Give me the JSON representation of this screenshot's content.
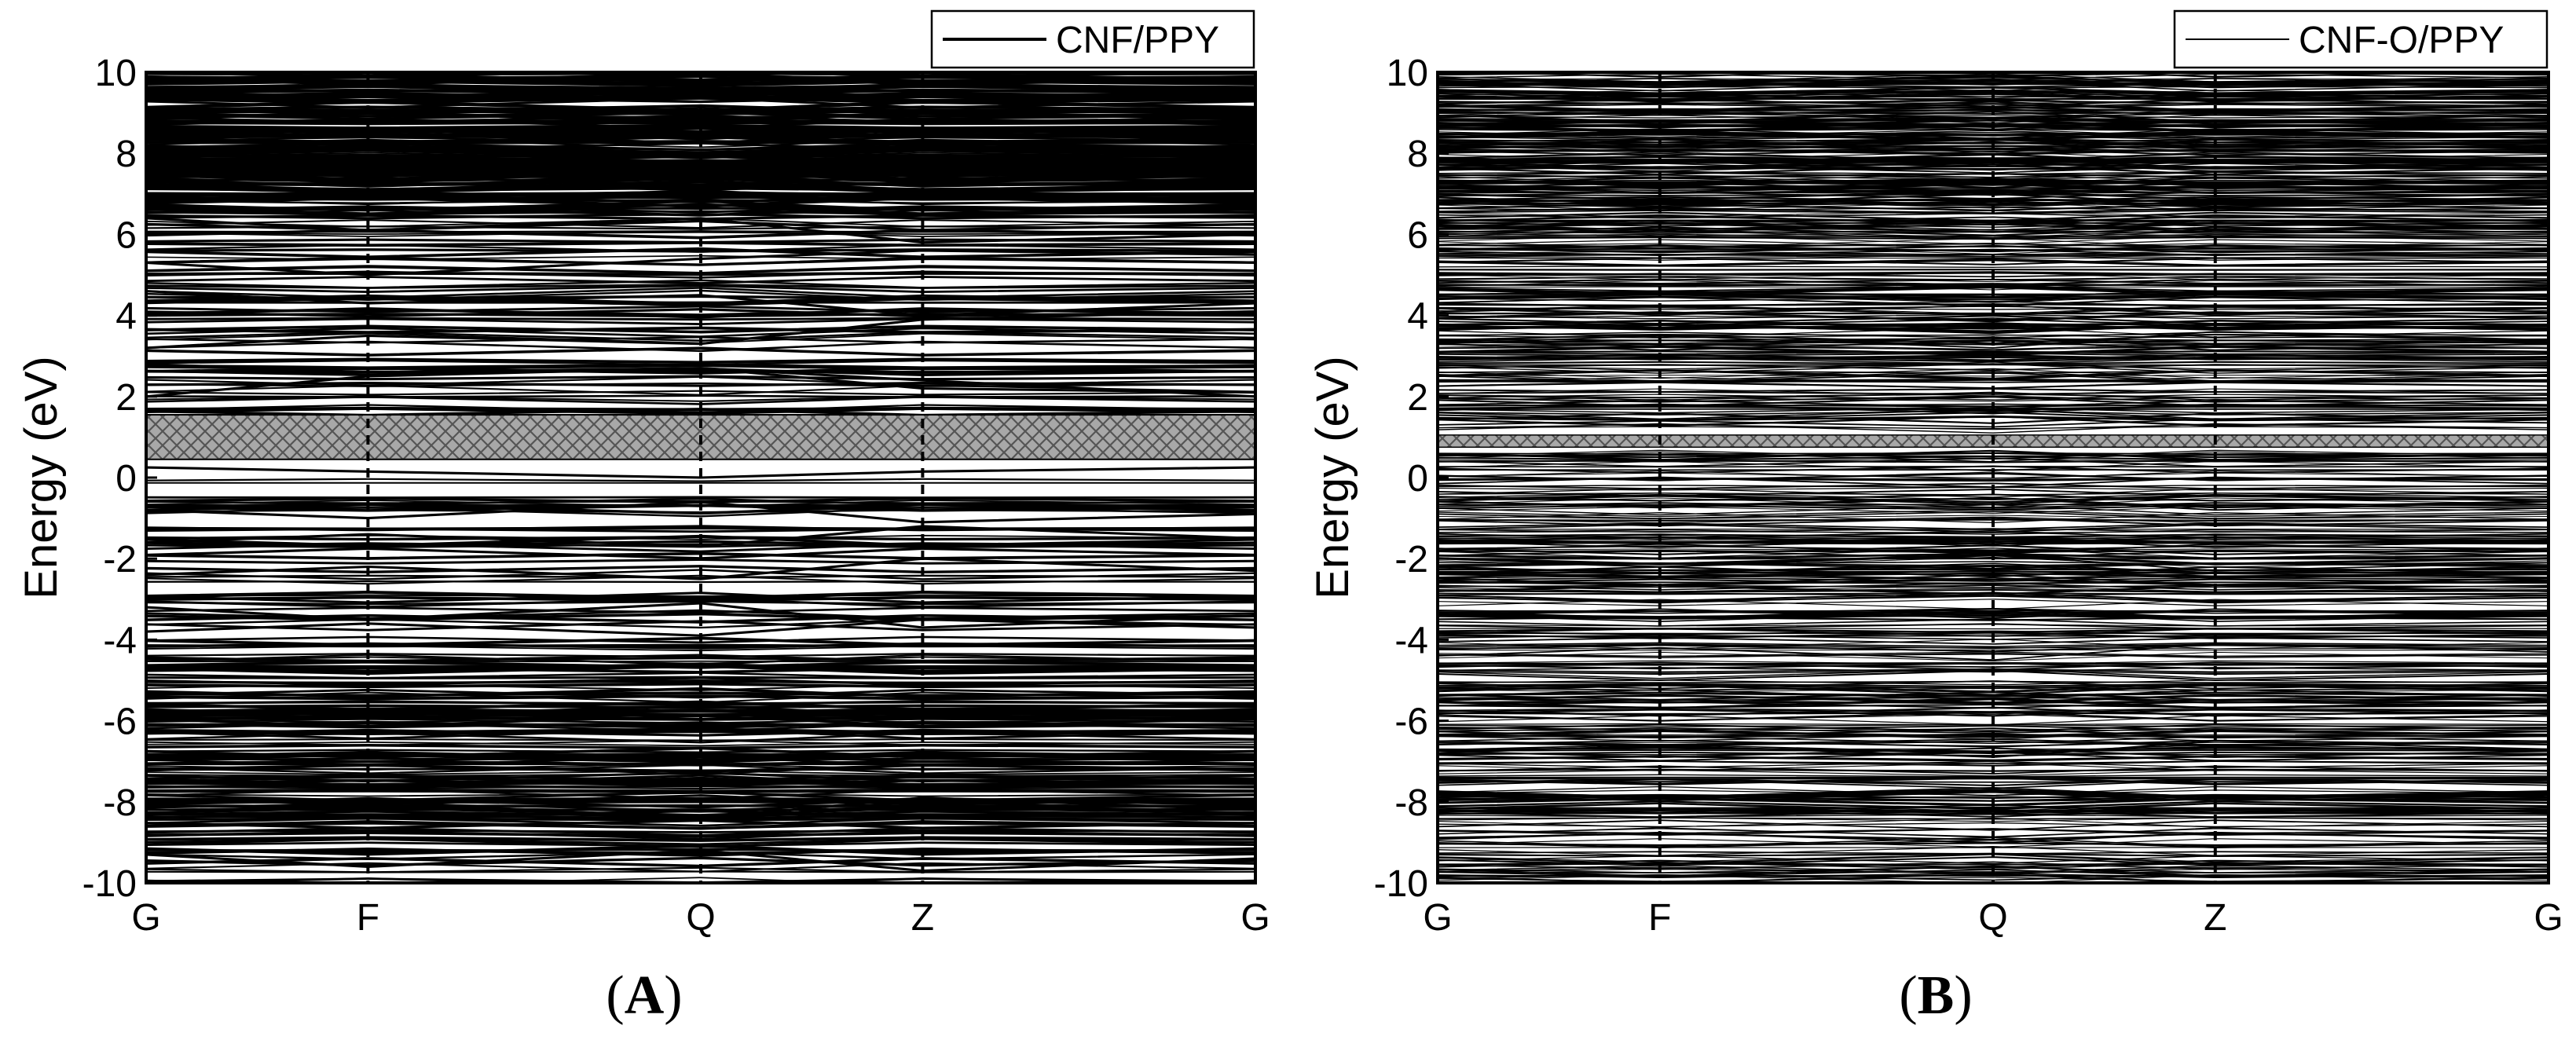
{
  "colors": {
    "band_line": "#000000",
    "gap_fill": "#9a9a9a",
    "frame": "#000000",
    "background": "#ffffff"
  },
  "chart_data": [
    {
      "type": "line",
      "panel_label": "A",
      "ylabel": "Energy (eV)",
      "xlabel": "",
      "ylim": [
        -10,
        10
      ],
      "yticks": [
        -10,
        -8,
        -6,
        -4,
        -2,
        0,
        2,
        4,
        6,
        8,
        10
      ],
      "xticks": [
        "G",
        "F",
        "Q",
        "Z",
        "G"
      ],
      "xtick_positions": [
        0,
        0.2,
        0.5,
        0.7,
        1.0
      ],
      "high_symmetry_dividers": [
        "F",
        "Q",
        "Z"
      ],
      "legend": {
        "entry": "CNF/PPY",
        "placement": "top-right"
      },
      "band_gap_region": {
        "from_eV": 0.45,
        "to_eV": 1.55,
        "style": "cross-hatched"
      },
      "series": [
        {
          "values": [
            0.25,
            0.15,
            0.0,
            0.15,
            0.25
          ]
        },
        {
          "values": [
            2.0,
            2.5,
            2.7,
            2.4,
            2.0
          ]
        },
        {
          "values": [
            2.8,
            2.6,
            2.7,
            2.2,
            2.1
          ]
        },
        {
          "values": [
            3.2,
            3.5,
            3.3,
            3.9,
            4.1
          ]
        },
        {
          "values": [
            4.6,
            4.3,
            4.5,
            4.0,
            4.3
          ]
        },
        {
          "values": [
            5.3,
            5.0,
            5.4,
            5.6,
            5.5
          ]
        },
        {
          "values": [
            6.4,
            6.1,
            6.4,
            5.8,
            6.0
          ]
        },
        {
          "values": [
            -0.8,
            -1.0,
            -0.6,
            -1.1,
            -0.9
          ]
        },
        {
          "values": [
            -1.6,
            -1.4,
            -1.7,
            -1.2,
            -1.5
          ]
        },
        {
          "values": [
            -2.4,
            -2.2,
            -2.5,
            -2.0,
            -2.3
          ]
        },
        {
          "values": [
            -3.2,
            -3.5,
            -3.1,
            -3.7,
            -3.4
          ]
        },
        {
          "values": [
            -3.8,
            -3.6,
            -3.9,
            -3.5,
            -3.7
          ]
        },
        {
          "values": [
            -9.3,
            -9.6,
            -9.2,
            -9.7,
            -9.4
          ]
        },
        {
          "values": [
            -8.3,
            -8.0,
            -8.4,
            -7.9,
            -8.2
          ]
        }
      ],
      "dense_bands": [
        {
          "from_eV": -10,
          "to_eV": -4,
          "count": 150
        },
        {
          "from_eV": -4,
          "to_eV": 0,
          "count": 45
        },
        {
          "from_eV": 1.6,
          "to_eV": 6.5,
          "count": 70
        },
        {
          "from_eV": 6.5,
          "to_eV": 10,
          "count": 190
        }
      ]
    },
    {
      "type": "line",
      "panel_label": "B",
      "ylabel": "Energy (eV)",
      "xlabel": "",
      "ylim": [
        -10,
        10
      ],
      "yticks": [
        -10,
        -8,
        -6,
        -4,
        -2,
        0,
        2,
        4,
        6,
        8,
        10
      ],
      "xticks": [
        "G",
        "F",
        "Q",
        "Z",
        "G"
      ],
      "xtick_positions": [
        0,
        0.2,
        0.5,
        0.7,
        1.0
      ],
      "high_symmetry_dividers": [
        "F",
        "Q",
        "Z"
      ],
      "legend": {
        "entry": "CNF-O/PPY",
        "placement": "top-right"
      },
      "band_gap_region": {
        "from_eV": 0.75,
        "to_eV": 1.05,
        "style": "cross-hatched"
      },
      "series": [
        {
          "values": [
            0.55,
            0.5,
            0.6,
            0.5,
            0.55
          ]
        },
        {
          "values": [
            1.3,
            1.4,
            1.25,
            1.45,
            1.35
          ]
        },
        {
          "values": [
            -0.6,
            -0.7,
            -0.5,
            -0.8,
            -0.6
          ]
        },
        {
          "values": [
            -2.0,
            -2.2,
            -1.9,
            -2.3,
            -2.1
          ]
        },
        {
          "values": [
            -4.4,
            -4.2,
            -4.5,
            -4.1,
            -4.3
          ]
        },
        {
          "values": [
            -6.8,
            -6.6,
            -6.9,
            -6.5,
            -6.7
          ]
        },
        {
          "values": [
            3.3,
            3.5,
            3.2,
            3.6,
            3.4
          ]
        }
      ],
      "dense_bands": [
        {
          "from_eV": -10,
          "to_eV": 0.6,
          "count": 330
        },
        {
          "from_eV": 1.2,
          "to_eV": 6.0,
          "count": 170
        },
        {
          "from_eV": 6.0,
          "to_eV": 10,
          "count": 230
        }
      ]
    }
  ]
}
